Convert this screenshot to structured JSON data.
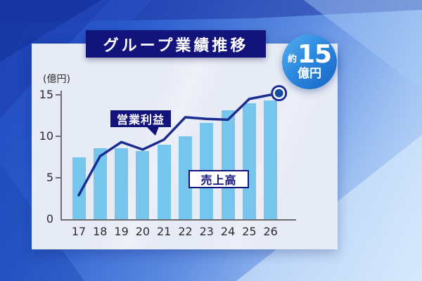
{
  "title": "グループ業績推移",
  "badge": {
    "prefix": "約",
    "value": "15",
    "unit": "億円"
  },
  "chart_data": {
    "type": "bar",
    "title": "グループ業績推移",
    "unit_label": "(億円)",
    "categories": [
      "17",
      "18",
      "19",
      "20",
      "21",
      "22",
      "23",
      "24",
      "25",
      "26"
    ],
    "series": [
      {
        "name": "売上高",
        "type": "bar",
        "color": "#76c5ec",
        "values": [
          7.5,
          8.6,
          8.6,
          8.2,
          9.0,
          10.0,
          11.6,
          13.1,
          14.0,
          14.3
        ]
      },
      {
        "name": "営業利益",
        "type": "line",
        "color": "#1b2d91",
        "values": [
          2.9,
          7.6,
          9.3,
          8.4,
          9.6,
          12.3,
          12.1,
          12.0,
          14.5,
          15.2
        ]
      }
    ],
    "ylim": [
      0,
      15
    ],
    "yticks": [
      0,
      5,
      10,
      15
    ],
    "xlabel": "",
    "ylabel": "(億円)",
    "grid": false,
    "legend_position": "annotations-on-chart",
    "annotations": [
      {
        "text": "営業利益",
        "style": "navy-bubble-with-tail",
        "points_to": "line"
      },
      {
        "text": "売上高",
        "style": "white-box-navy-border",
        "points_to": "bars"
      }
    ],
    "end_marker": {
      "at_category": "26",
      "value": 15.2,
      "label": "約15億円"
    }
  },
  "colors": {
    "accent_navy": "#13137c",
    "line": "#1b2d91",
    "bar": "#76c5ec",
    "badge_gradient_start": "#54aef0",
    "badge_gradient_end": "#1565c4",
    "panel_bg": "#e7ebf5",
    "marker_dot": "#164f9e",
    "axis": "#6e6e72"
  }
}
